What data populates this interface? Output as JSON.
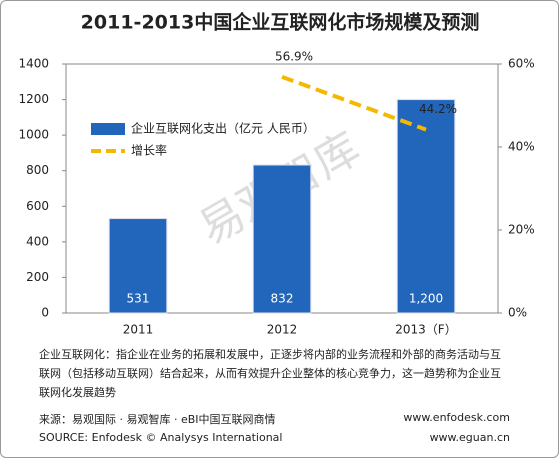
{
  "chart_data": {
    "type": "bar",
    "title": "2011-2013中国企业互联网化市场规模及预测",
    "categories": [
      "2011",
      "2012",
      "2013（F）"
    ],
    "series": [
      {
        "name": "企业互联网化支出（亿元 人民币）",
        "type": "bar",
        "color": "#2266bb",
        "values": [
          531,
          832,
          1200
        ],
        "value_labels": [
          "531",
          "832",
          "1,200"
        ]
      },
      {
        "name": "增长率",
        "type": "line",
        "axis": "y2",
        "color": "#f5b800",
        "values": [
          null,
          56.9,
          44.2
        ],
        "value_labels": [
          null,
          "56.9%",
          "44.2%"
        ]
      }
    ],
    "ylim": [
      0,
      1400
    ],
    "yticks": [
      0,
      200,
      400,
      600,
      800,
      1000,
      1200,
      1400
    ],
    "y2lim": [
      0,
      60
    ],
    "y2ticks": [
      {
        "value": 0,
        "label": "0%"
      },
      {
        "value": 20,
        "label": "20%"
      },
      {
        "value": 40,
        "label": "40%"
      },
      {
        "value": 60,
        "label": "60%"
      }
    ],
    "watermark": "易观智库"
  },
  "note": "企业互联网化：指企业在业务的拓展和发展中，正逐步将内部的业务流程和外部的商务活动与互联网（包括移动互联网）结合起来，从而有效提升企业整体的核心竞争力，这一趋势称为企业互联网化发展趋势",
  "source": [
    "来源：易观国际 · 易观智库 · eBI中国互联网商情",
    "SOURCE: Enfodesk © Analysys International"
  ],
  "websites": [
    "www.enfodesk.com",
    "www.eguan.cn"
  ]
}
